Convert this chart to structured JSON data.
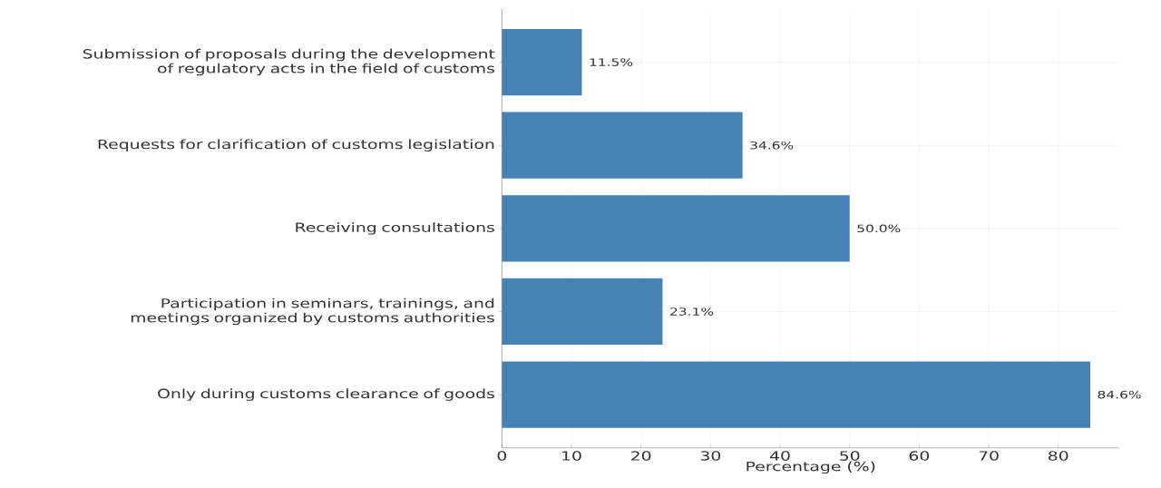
{
  "chart_data": {
    "type": "bar",
    "orientation": "horizontal",
    "xlabel": "Percentage (%)",
    "categories": [
      "Submission of proposals during the development of regulatory acts in the field of customs",
      "Requests for clarification of customs legislation",
      "Receiving consultations",
      "Participation in seminars, trainings, and meetings organized by customs authorities",
      "Only during customs clearance of goods"
    ],
    "values": [
      11.5,
      34.6,
      50.0,
      23.1,
      84.6
    ],
    "value_labels": [
      "11.5%",
      "34.6%",
      "50.0%",
      "23.1%",
      "84.6%"
    ],
    "color": "#4682b4",
    "xlim": [
      0,
      88.8
    ],
    "xticks": [
      0,
      10,
      20,
      30,
      40,
      50,
      60,
      70,
      80
    ],
    "grid": true
  }
}
